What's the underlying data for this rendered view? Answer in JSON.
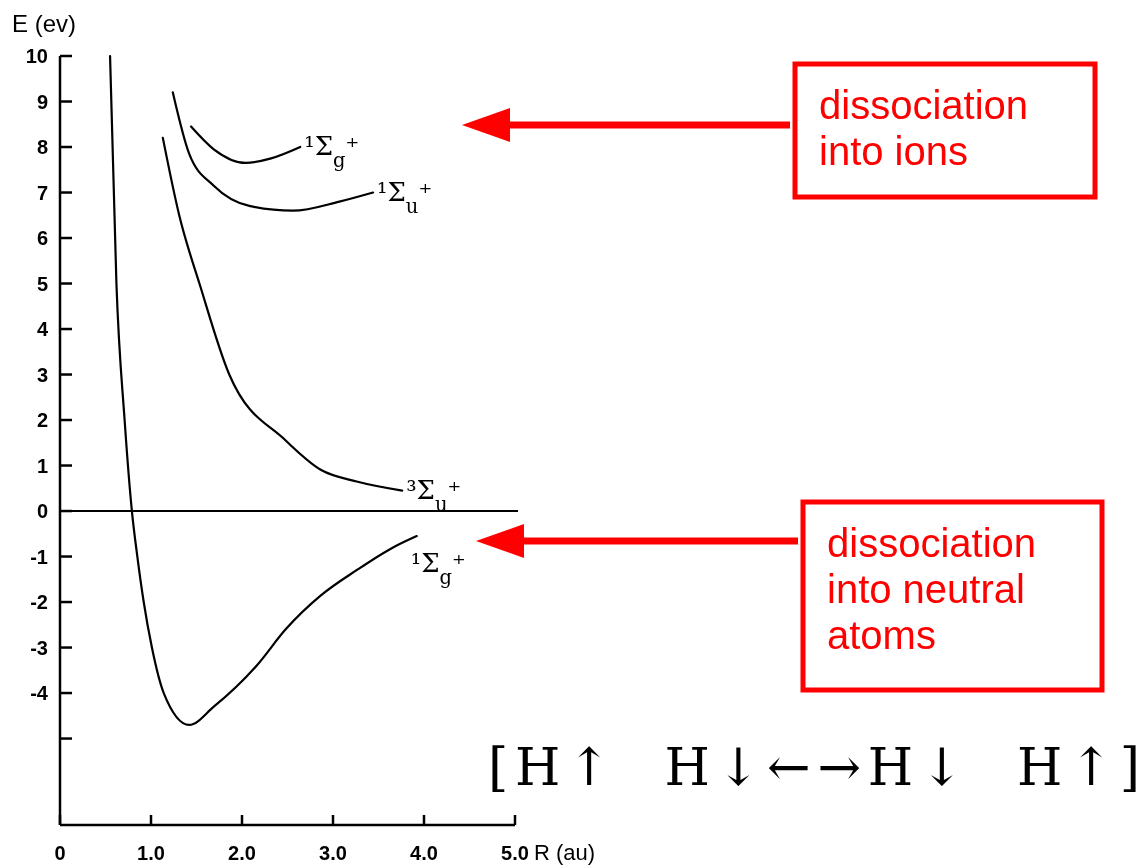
{
  "chart_data": {
    "type": "line",
    "ylabel": "E (ev)",
    "xlabel": "R (au)",
    "xlim": [
      0,
      5
    ],
    "xticks": [
      0,
      {
        "value": 1,
        "label": "1.0"
      },
      {
        "value": 2,
        "label": "2.0"
      },
      {
        "value": 3,
        "label": "3.0"
      },
      {
        "value": 4,
        "label": "4.0"
      },
      {
        "value": 5,
        "label": "5.0"
      }
    ],
    "ylim": [
      -6.9,
      10
    ],
    "yticks": [
      {
        "value": -5,
        "label": null
      },
      -4,
      -3,
      -2,
      -1,
      0,
      1,
      2,
      3,
      4,
      5,
      6,
      7,
      8,
      9,
      10
    ],
    "grid": false,
    "legend": false,
    "marker": "none",
    "line_style": "solid",
    "ref_lines": [
      {
        "axis": "y",
        "value": 0,
        "color": "#000000"
      }
    ],
    "series": [
      {
        "name": "¹Σ$_{g}$⁺",
        "color": "#000000",
        "x": [
          0.55,
          0.62,
          0.71,
          0.79,
          0.85,
          0.92,
          1.01,
          1.14,
          1.42,
          1.69,
          2.16,
          2.48,
          2.87,
          3.26,
          3.66,
          3.92
        ],
        "values": [
          10,
          5,
          2,
          0,
          -1,
          -2,
          -3,
          -4,
          -4.7,
          -4.3,
          -3.4,
          -2.6,
          -1.85,
          -1.3,
          -0.8,
          -0.55
        ]
      },
      {
        "name": "³Σ$_{u}$⁺",
        "color": "#000000",
        "x": [
          1.13,
          1.31,
          1.54,
          1.86,
          2.48,
          2.87,
          3.26,
          3.76
        ],
        "values": [
          8.2,
          6.5,
          4.95,
          3,
          1.55,
          0.9,
          0.65,
          0.45
        ]
      },
      {
        "name": "¹Σ$_{u}$⁺",
        "color": "#000000",
        "x": [
          1.24,
          1.42,
          1.69,
          2.09,
          2.56,
          3.07,
          3.44
        ],
        "values": [
          9.2,
          7.85,
          7.15,
          6.7,
          6.6,
          6.8,
          7.0
        ]
      },
      {
        "name": "¹Σ$_{g}$⁺",
        "color": "#000000",
        "x": [
          1.44,
          1.69,
          2.04,
          2.32,
          2.64
        ],
        "values": [
          8.45,
          7.95,
          7.65,
          7.75,
          8.0
        ]
      }
    ],
    "annotations": [
      "dissociation into ions",
      "dissociation into neutral atoms",
      "[H↑  H↓←→H↓  H↑]"
    ]
  }
}
